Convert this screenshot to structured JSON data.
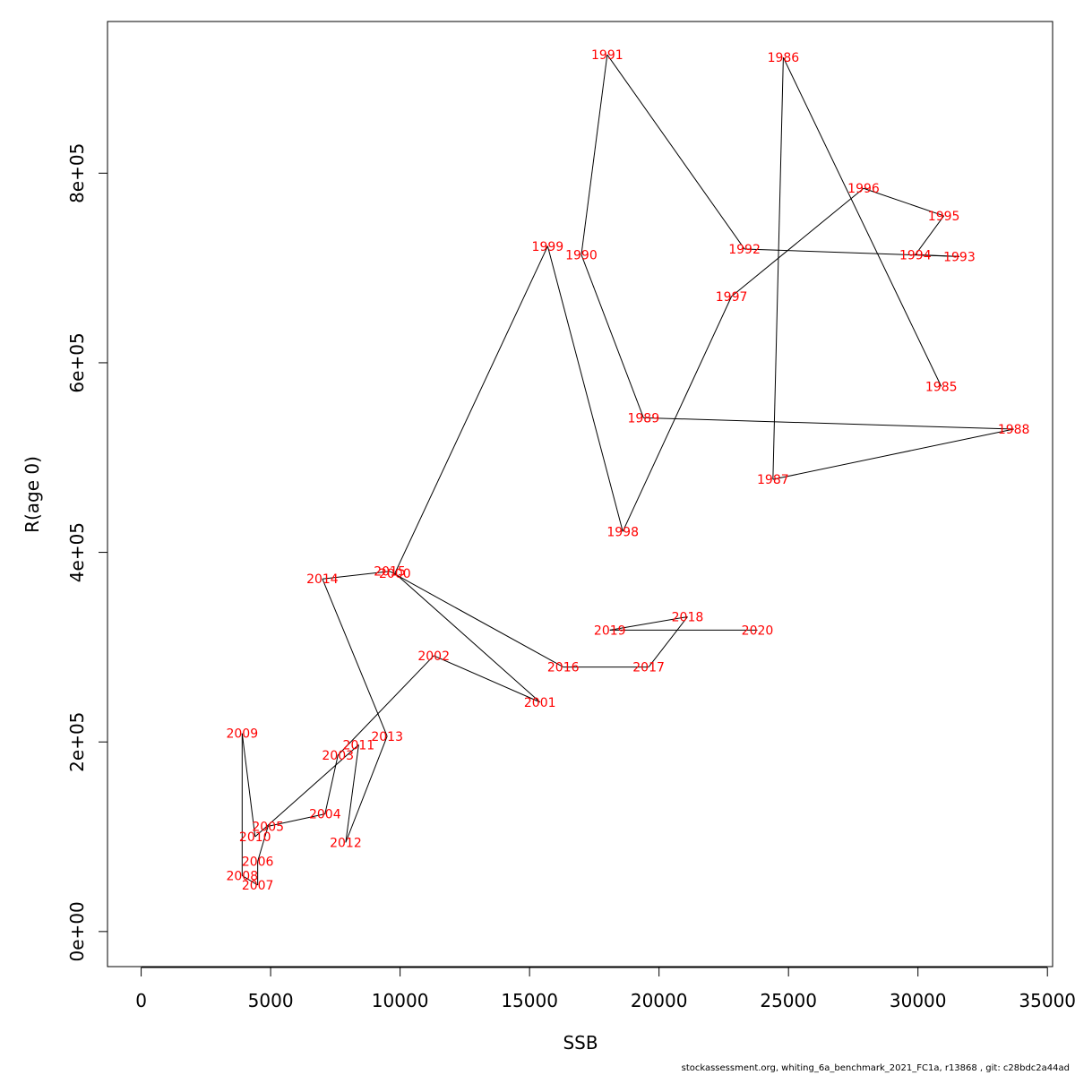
{
  "chart_data": {
    "type": "scatter",
    "xlabel": "SSB",
    "ylabel": "R(age 0)",
    "xlim": [
      -1300,
      35200
    ],
    "ylim": [
      -37000,
      960000
    ],
    "x_ticks": [
      0,
      5000,
      10000,
      15000,
      20000,
      25000,
      30000,
      35000
    ],
    "x_tick_labels": [
      "0",
      "5000",
      "10000",
      "15000",
      "20000",
      "25000",
      "30000",
      "35000"
    ],
    "y_ticks": [
      0,
      200000,
      400000,
      600000,
      800000
    ],
    "y_tick_labels": [
      "0e+00",
      "2e+05",
      "4e+05",
      "6e+05",
      "8e+05"
    ],
    "grid": false,
    "line_color": "#000000",
    "label_color": "#ff0000",
    "series": [
      {
        "points": [
          {
            "year": "1985",
            "ssb": 30900,
            "r": 575000
          },
          {
            "year": "1986",
            "ssb": 24800,
            "r": 922000
          },
          {
            "year": "1987",
            "ssb": 24400,
            "r": 477000
          },
          {
            "year": "1988",
            "ssb": 33700,
            "r": 530000
          },
          {
            "year": "1989",
            "ssb": 19400,
            "r": 542000
          },
          {
            "year": "1990",
            "ssb": 17000,
            "r": 714000
          },
          {
            "year": "1991",
            "ssb": 18000,
            "r": 925000
          },
          {
            "year": "1992",
            "ssb": 23300,
            "r": 720000
          },
          {
            "year": "1993",
            "ssb": 31600,
            "r": 712000
          },
          {
            "year": "1994",
            "ssb": 29900,
            "r": 714000
          },
          {
            "year": "1995",
            "ssb": 31000,
            "r": 755000
          },
          {
            "year": "1996",
            "ssb": 27900,
            "r": 784000
          },
          {
            "year": "1997",
            "ssb": 22800,
            "r": 670000
          },
          {
            "year": "1998",
            "ssb": 18600,
            "r": 422000
          },
          {
            "year": "1999",
            "ssb": 15700,
            "r": 723000
          },
          {
            "year": "2000",
            "ssb": 9800,
            "r": 378000
          },
          {
            "year": "2001",
            "ssb": 15400,
            "r": 242000
          },
          {
            "year": "2002",
            "ssb": 11300,
            "r": 291000
          },
          {
            "year": "2003",
            "ssb": 7600,
            "r": 186000
          },
          {
            "year": "2004",
            "ssb": 7100,
            "r": 124000
          },
          {
            "year": "2005",
            "ssb": 4900,
            "r": 111000
          },
          {
            "year": "2006",
            "ssb": 4500,
            "r": 74000
          },
          {
            "year": "2007",
            "ssb": 4500,
            "r": 49000
          },
          {
            "year": "2008",
            "ssb": 3900,
            "r": 59000
          },
          {
            "year": "2009",
            "ssb": 3900,
            "r": 209000
          },
          {
            "year": "2010",
            "ssb": 4400,
            "r": 100000
          },
          {
            "year": "2011",
            "ssb": 8400,
            "r": 197000
          },
          {
            "year": "2012",
            "ssb": 7900,
            "r": 94000
          },
          {
            "year": "2013",
            "ssb": 9500,
            "r": 206000
          },
          {
            "year": "2014",
            "ssb": 7000,
            "r": 372000
          },
          {
            "year": "2015",
            "ssb": 9600,
            "r": 380000
          },
          {
            "year": "2016",
            "ssb": 16300,
            "r": 279000
          },
          {
            "year": "2017",
            "ssb": 19600,
            "r": 279000
          },
          {
            "year": "2018",
            "ssb": 21100,
            "r": 332000
          },
          {
            "year": "2019",
            "ssb": 18100,
            "r": 318000
          },
          {
            "year": "2020",
            "ssb": 23800,
            "r": 318000
          }
        ]
      }
    ]
  },
  "footer": {
    "text": "stockassessment.org, whiting_6a_benchmark_2021_FC1a, r13868 , git: c28bdc2a44ad"
  }
}
